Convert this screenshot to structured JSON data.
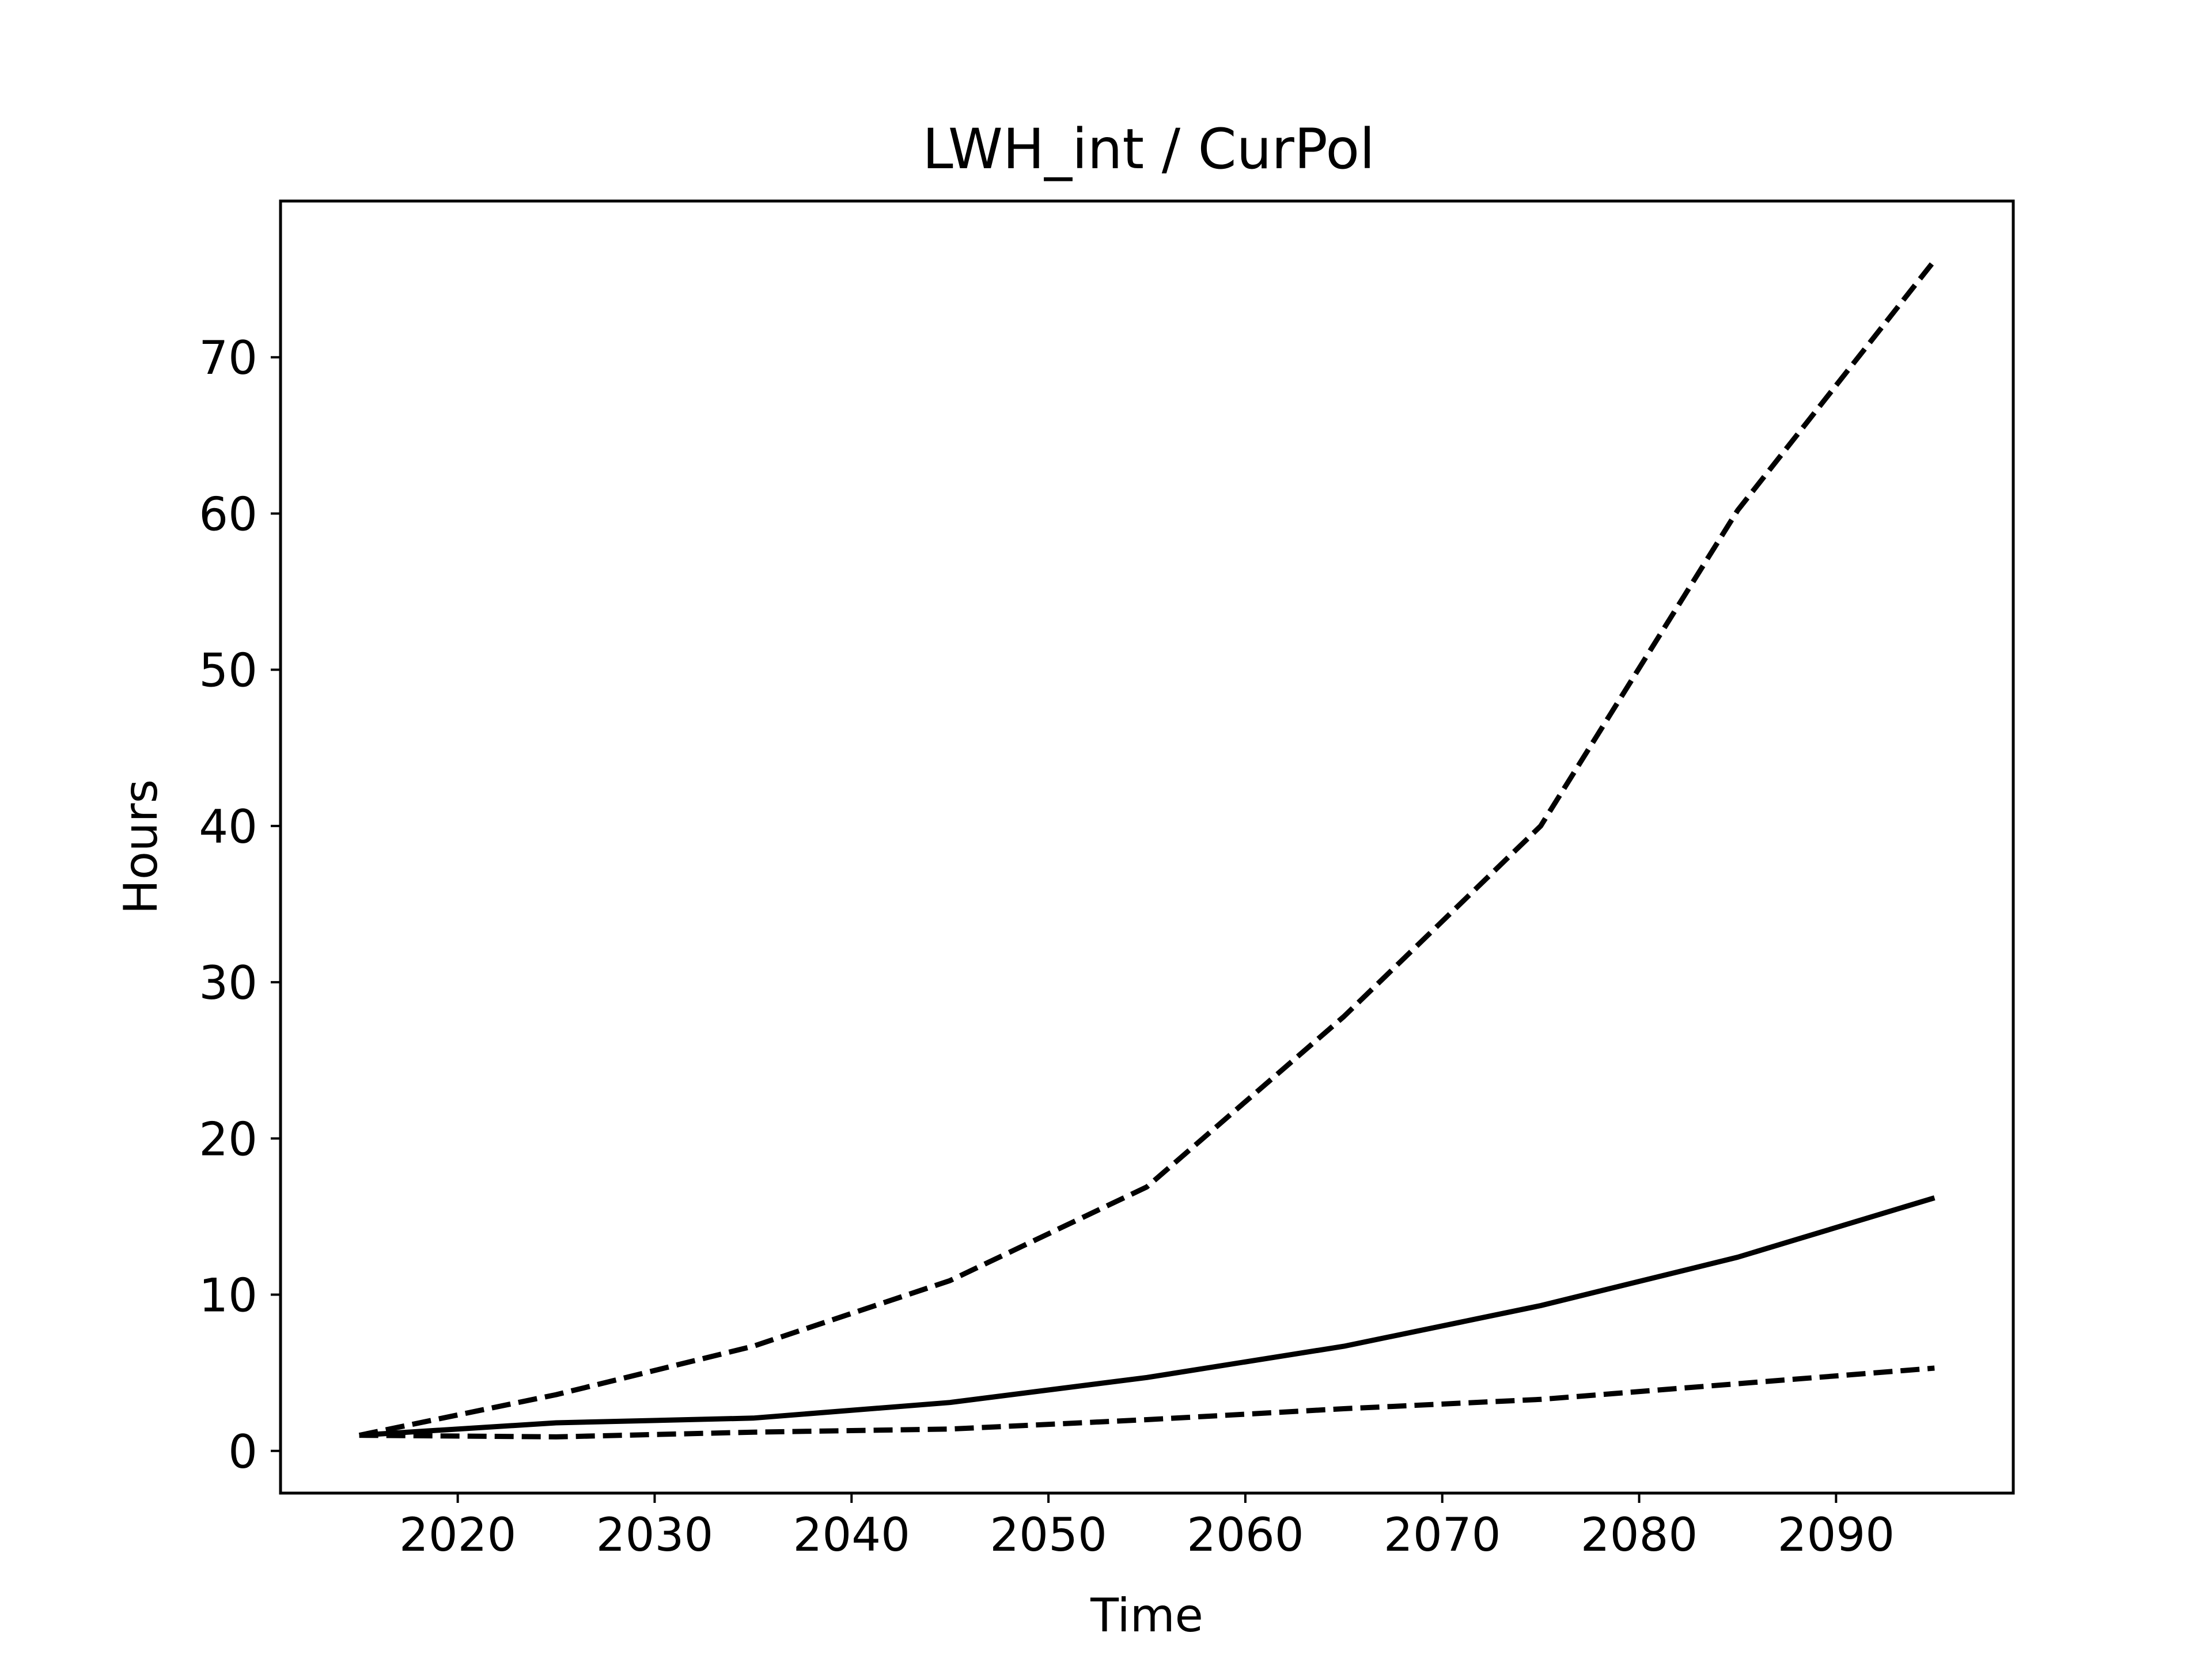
{
  "chart_data": {
    "type": "line",
    "title": "LWH_int / CurPol",
    "xlabel": "Time",
    "ylabel": "Hours",
    "xlim": [
      2011,
      2099
    ],
    "ylim": [
      -2.7,
      80
    ],
    "xticks": [
      2020,
      2030,
      2040,
      2050,
      2060,
      2070,
      2080,
      2090
    ],
    "yticks": [
      0,
      10,
      20,
      30,
      40,
      50,
      60,
      70
    ],
    "grid": false,
    "legend": false,
    "line_color": "#000000",
    "x": [
      2015,
      2025,
      2035,
      2045,
      2055,
      2065,
      2075,
      2085,
      2095
    ],
    "series": [
      {
        "style": "dashed",
        "values": [
          1.0,
          3.6,
          6.7,
          10.9,
          16.9,
          27.8,
          40.0,
          60.2,
          76.2
        ]
      },
      {
        "style": "solid",
        "values": [
          1.0,
          1.8,
          2.1,
          3.1,
          4.7,
          6.7,
          9.3,
          12.4,
          16.2
        ]
      },
      {
        "style": "dashed",
        "values": [
          1.0,
          0.9,
          1.2,
          1.4,
          2.0,
          2.7,
          3.3,
          4.3,
          5.3
        ]
      }
    ]
  }
}
